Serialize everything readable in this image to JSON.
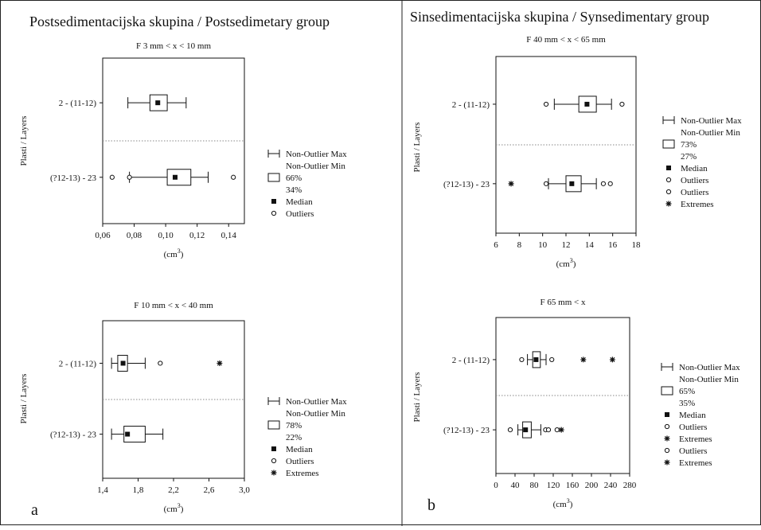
{
  "panels": [
    {
      "heading": "Postsedimentacijska skupina / Postsedimetary group",
      "letter": "a"
    },
    {
      "heading": "Sinsedimentacijska skupina / Synsedimentary group",
      "letter": "b"
    }
  ],
  "chart_data": [
    {
      "type": "boxplot",
      "title": "F 3 mm < x < 10 mm",
      "ylabel": "Plasti / Layers",
      "xlabel": "(cm3)",
      "xlim": [
        0.06,
        0.15
      ],
      "xticks": [
        "0,06",
        "0,08",
        "0,10",
        "0,12",
        "0,14"
      ],
      "xtick_values": [
        0.06,
        0.08,
        0.1,
        0.12,
        0.14
      ],
      "categories": [
        "2 - (11-12)",
        "(?12-13) - 23"
      ],
      "boxes": [
        {
          "category": "2 - (11-12)",
          "whisker_min": 0.076,
          "q1": 0.09,
          "median": 0.095,
          "q3": 0.101,
          "whisker_max": 0.113,
          "outliers": [],
          "extremes": []
        },
        {
          "category": "(?12-13) - 23",
          "whisker_min": 0.077,
          "q1": 0.101,
          "median": 0.106,
          "q3": 0.116,
          "whisker_max": 0.127,
          "outliers": [
            0.066,
            0.077,
            0.143
          ],
          "extremes": []
        }
      ],
      "legend": [
        {
          "symbol": "whisker",
          "label": "Non-Outlier Max"
        },
        {
          "symbol": "none",
          "label": "Non-Outlier Min"
        },
        {
          "symbol": "box",
          "label": "66%"
        },
        {
          "symbol": "none",
          "label": "34%"
        },
        {
          "symbol": "square",
          "label": "Median"
        },
        {
          "symbol": "circle",
          "label": "Outliers"
        }
      ]
    },
    {
      "type": "boxplot",
      "title": "F 10 mm < x < 40 mm",
      "ylabel": "Plasti / Layers",
      "xlabel": "(cm3)",
      "xlim": [
        1.4,
        3.0
      ],
      "xticks": [
        "1,4",
        "1,8",
        "2,2",
        "2,6",
        "3,0"
      ],
      "xtick_values": [
        1.4,
        1.8,
        2.2,
        2.6,
        3.0
      ],
      "categories": [
        "2 - (11-12)",
        "(?12-13) - 23"
      ],
      "boxes": [
        {
          "category": "2 - (11-12)",
          "whisker_min": 1.5,
          "q1": 1.57,
          "median": 1.63,
          "q3": 1.68,
          "whisker_max": 1.88,
          "outliers": [
            2.05
          ],
          "extremes": [
            2.72
          ]
        },
        {
          "category": "(?12-13) - 23",
          "whisker_min": 1.5,
          "q1": 1.64,
          "median": 1.68,
          "q3": 1.88,
          "whisker_max": 2.08,
          "outliers": [],
          "extremes": []
        }
      ],
      "legend": [
        {
          "symbol": "whisker",
          "label": "Non-Outlier Max"
        },
        {
          "symbol": "none",
          "label": "Non-Outlier Min"
        },
        {
          "symbol": "box",
          "label": "78%"
        },
        {
          "symbol": "none",
          "label": "22%"
        },
        {
          "symbol": "square",
          "label": "Median"
        },
        {
          "symbol": "circle",
          "label": "Outliers"
        },
        {
          "symbol": "star",
          "label": "Extremes"
        }
      ]
    },
    {
      "type": "boxplot",
      "title": "F 40 mm < x < 65 mm",
      "ylabel": "Plasti / Layers",
      "xlabel": "(cm3)",
      "xlim": [
        6,
        18
      ],
      "xticks": [
        "6",
        "8",
        "10",
        "12",
        "14",
        "16",
        "18"
      ],
      "xtick_values": [
        6,
        8,
        10,
        12,
        14,
        16,
        18
      ],
      "categories": [
        "2 - (11-12)",
        "(?12-13) - 23"
      ],
      "boxes": [
        {
          "category": "2 - (11-12)",
          "whisker_min": 11.0,
          "q1": 13.1,
          "median": 13.8,
          "q3": 14.6,
          "whisker_max": 15.9,
          "outliers": [
            10.3,
            16.8
          ],
          "extremes": []
        },
        {
          "category": "(?12-13) - 23",
          "whisker_min": 10.5,
          "q1": 12.0,
          "median": 12.5,
          "q3": 13.3,
          "whisker_max": 14.6,
          "outliers": [
            10.3,
            15.2,
            15.8
          ],
          "extremes": [
            7.3
          ]
        }
      ],
      "legend": [
        {
          "symbol": "whisker",
          "label": "Non-Outlier Max"
        },
        {
          "symbol": "none",
          "label": "Non-Outlier Min"
        },
        {
          "symbol": "box",
          "label": "73%"
        },
        {
          "symbol": "none",
          "label": "27%"
        },
        {
          "symbol": "square",
          "label": "Median"
        },
        {
          "symbol": "circle",
          "label": "Outliers"
        },
        {
          "symbol": "circle",
          "label": "Outliers"
        },
        {
          "symbol": "star",
          "label": "Extremes"
        }
      ]
    },
    {
      "type": "boxplot",
      "title": "F 65 mm < x",
      "ylabel": "Plasti / Layers",
      "xlabel": "(cm3)",
      "xlim": [
        0,
        280
      ],
      "xticks": [
        "0",
        "40",
        "80",
        "120",
        "160",
        "200",
        "240",
        "280"
      ],
      "xtick_values": [
        0,
        40,
        80,
        120,
        160,
        200,
        240,
        280
      ],
      "categories": [
        "2 - (11-12)",
        "(?12-13) - 23"
      ],
      "boxes": [
        {
          "category": "2 - (11-12)",
          "whisker_min": 66,
          "q1": 77,
          "median": 84,
          "q3": 93,
          "whisker_max": 105,
          "outliers": [
            54,
            117
          ],
          "extremes": [
            183,
            244
          ]
        },
        {
          "category": "(?12-13) - 23",
          "whisker_min": 46,
          "q1": 56,
          "median": 62,
          "q3": 74,
          "whisker_max": 94,
          "outliers": [
            30,
            104,
            110,
            128
          ],
          "extremes": [
            137
          ]
        }
      ],
      "legend": [
        {
          "symbol": "whisker",
          "label": "Non-Outlier Max"
        },
        {
          "symbol": "none",
          "label": "Non-Outlier Min"
        },
        {
          "symbol": "box",
          "label": "65%"
        },
        {
          "symbol": "none",
          "label": "35%"
        },
        {
          "symbol": "square",
          "label": "Median"
        },
        {
          "symbol": "circle",
          "label": "Outliers"
        },
        {
          "symbol": "star",
          "label": "Extremes"
        },
        {
          "symbol": "circle",
          "label": "Outliers"
        },
        {
          "symbol": "star",
          "label": "Extremes"
        }
      ]
    }
  ]
}
